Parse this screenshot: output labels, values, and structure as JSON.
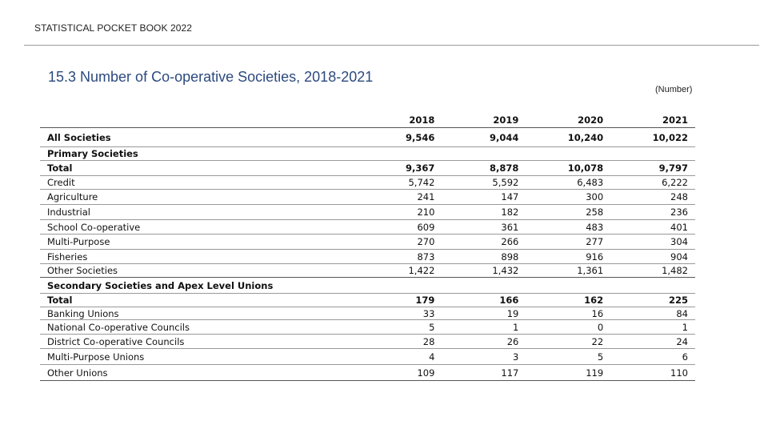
{
  "header": {
    "book_title": "STATISTICAL POCKET BOOK 2022"
  },
  "table": {
    "title": "15.3 Number of Co-operative Societies, 2018-2021",
    "unit_note": "(Number)",
    "columns": [
      "2018",
      "2019",
      "2020",
      "2021"
    ],
    "rows": [
      {
        "label": "All Societies",
        "values": [
          "9,546",
          "9,044",
          "10,240",
          "10,022"
        ]
      },
      {
        "label": "Primary Societies",
        "values": [
          "",
          "",
          "",
          ""
        ]
      },
      {
        "label": "Total",
        "values": [
          "9,367",
          "8,878",
          "10,078",
          "9,797"
        ]
      },
      {
        "label": "Credit",
        "values": [
          "5,742",
          "5,592",
          "6,483",
          "6,222"
        ]
      },
      {
        "label": "Agriculture",
        "values": [
          "241",
          "147",
          "300",
          "248"
        ]
      },
      {
        "label": "Industrial",
        "values": [
          "210",
          "182",
          "258",
          "236"
        ]
      },
      {
        "label": "School Co-operative",
        "values": [
          "609",
          "361",
          "483",
          "401"
        ]
      },
      {
        "label": "Multi-Purpose",
        "values": [
          "270",
          "266",
          "277",
          "304"
        ]
      },
      {
        "label": "Fisheries",
        "values": [
          "873",
          "898",
          "916",
          "904"
        ]
      },
      {
        "label": "Other Societies",
        "values": [
          "1,422",
          "1,432",
          "1,361",
          "1,482"
        ]
      },
      {
        "label": "Secondary Societies and Apex Level Unions",
        "values": [
          "",
          "",
          "",
          ""
        ]
      },
      {
        "label": "Total",
        "values": [
          "179",
          "166",
          "162",
          "225"
        ]
      },
      {
        "label": "Banking Unions",
        "values": [
          "33",
          "19",
          "16",
          "84"
        ]
      },
      {
        "label": "National Co-operative Councils",
        "values": [
          "5",
          "1",
          "0",
          "1"
        ]
      },
      {
        "label": "District Co-operative Councils",
        "values": [
          "28",
          "26",
          "22",
          "24"
        ]
      },
      {
        "label": "Multi-Purpose Unions",
        "values": [
          "4",
          "3",
          "5",
          "6"
        ]
      },
      {
        "label": "Other Unions",
        "values": [
          "109",
          "117",
          "119",
          "110"
        ]
      }
    ]
  }
}
